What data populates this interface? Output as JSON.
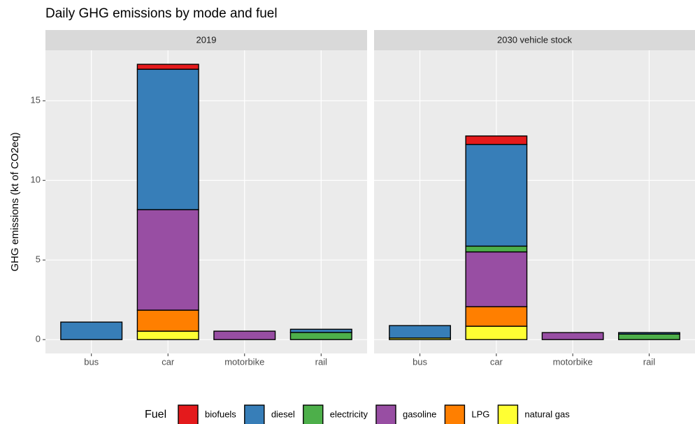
{
  "chart_data": {
    "type": "bar",
    "stacked": true,
    "title": "Daily GHG emissions by mode and fuel",
    "y_label": "GHG emissions (kt of CO2eq)",
    "facets": [
      "2019",
      "2030 vehicle stock"
    ],
    "categories": [
      "bus",
      "car",
      "motorbike",
      "rail"
    ],
    "legend_title": "Fuel",
    "legend_position": "bottom",
    "grid": true,
    "ylim": [
      -0.87,
      18.17
    ],
    "yticks": [
      0,
      5,
      10,
      15
    ],
    "series": [
      {
        "name": "natural gas",
        "color": "#ffff33",
        "values": [
          [
            0,
            0.53,
            0,
            0
          ],
          [
            0.1,
            0.84,
            0,
            0
          ]
        ]
      },
      {
        "name": "LPG",
        "color": "#ff7f00",
        "values": [
          [
            0,
            1.32,
            0,
            0
          ],
          [
            0,
            1.23,
            0,
            0
          ]
        ]
      },
      {
        "name": "gasoline",
        "color": "#984ea3",
        "values": [
          [
            0,
            6.31,
            0.53,
            0
          ],
          [
            0,
            3.44,
            0.44,
            0
          ]
        ]
      },
      {
        "name": "electricity",
        "color": "#4daf4a",
        "values": [
          [
            0,
            0,
            0,
            0.45
          ],
          [
            0,
            0.36,
            0,
            0.35
          ]
        ]
      },
      {
        "name": "diesel",
        "color": "#377eb8",
        "values": [
          [
            1.1,
            8.82,
            0,
            0.2
          ],
          [
            0.78,
            6.39,
            0,
            0.09
          ]
        ]
      },
      {
        "name": "biofuels",
        "color": "#e41a1c",
        "values": [
          [
            0,
            0.31,
            0,
            0
          ],
          [
            0,
            0.53,
            0,
            0
          ]
        ]
      }
    ]
  }
}
